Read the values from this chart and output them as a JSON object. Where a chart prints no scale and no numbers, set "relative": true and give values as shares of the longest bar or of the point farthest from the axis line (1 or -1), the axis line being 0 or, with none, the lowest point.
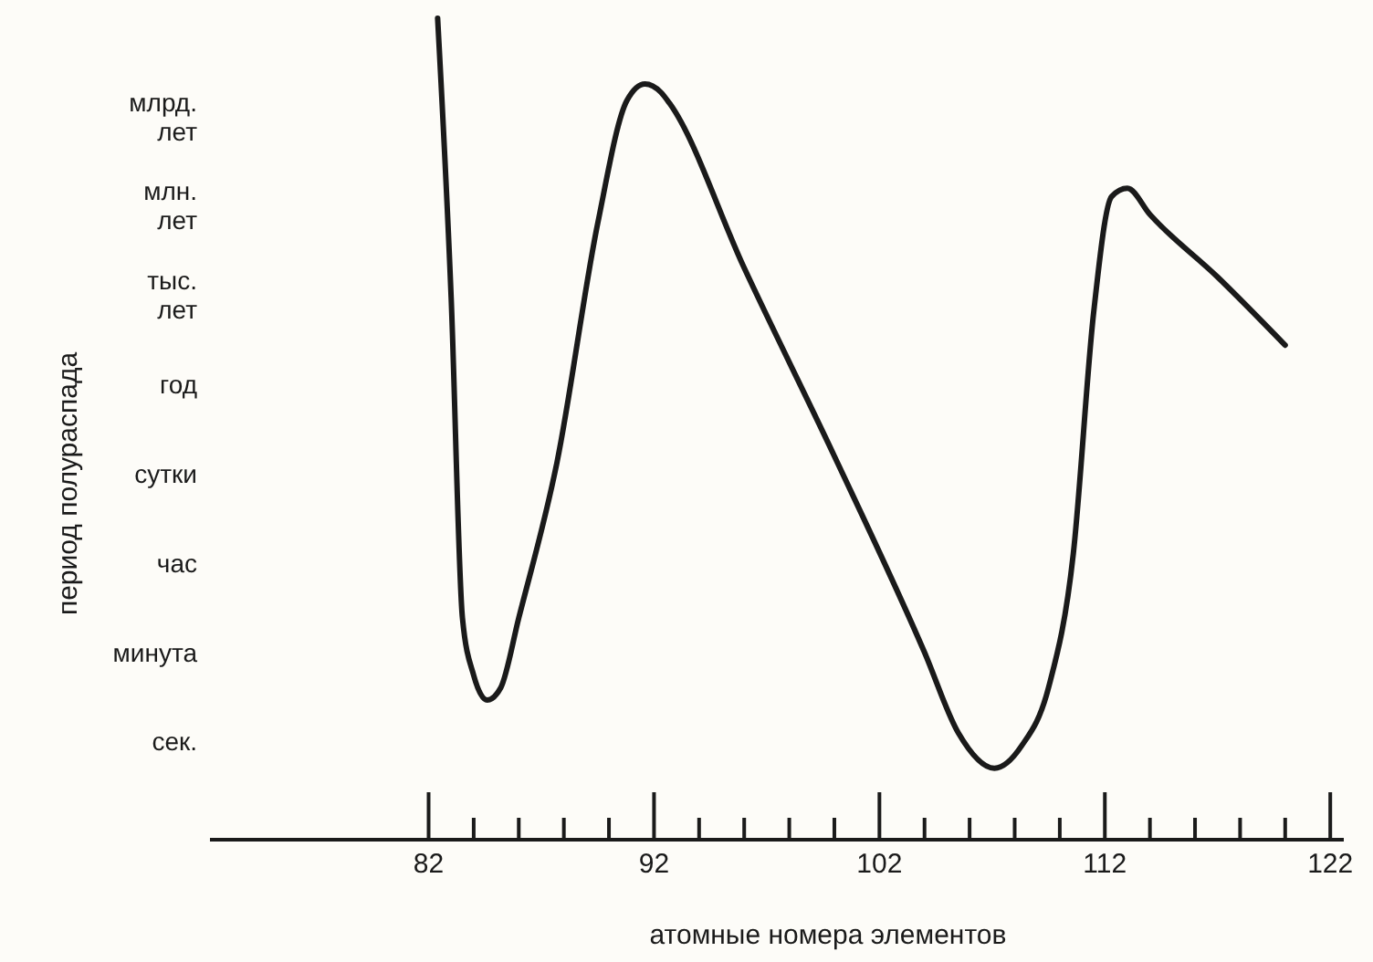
{
  "chart_data": {
    "type": "line",
    "relative": true,
    "xlabel": "атомные номера элементов",
    "ylabel": "период полураспада",
    "xlim": [
      72.3,
      122.6
    ],
    "xticks": [
      82,
      {
        "value": 84,
        "label": null
      },
      {
        "value": 86,
        "label": null
      },
      {
        "value": 88,
        "label": null
      },
      {
        "value": 90,
        "label": null
      },
      92,
      {
        "value": 94,
        "label": null
      },
      {
        "value": 96,
        "label": null
      },
      {
        "value": 98,
        "label": null
      },
      {
        "value": 100,
        "label": null
      },
      102,
      {
        "value": 104,
        "label": null
      },
      {
        "value": 106,
        "label": null
      },
      {
        "value": 108,
        "label": null
      },
      {
        "value": 110,
        "label": null
      },
      112,
      {
        "value": 114,
        "label": null
      },
      {
        "value": 116,
        "label": null
      },
      {
        "value": 118,
        "label": null
      },
      {
        "value": 120,
        "label": null
      },
      122
    ],
    "annotations": [
      "сек.",
      "минута",
      "час",
      "сутки",
      "год",
      "тыс.\nлет",
      "млн.\nлет",
      "млрд.\nлет"
    ],
    "marker": "none",
    "line_style": "solid",
    "series": [
      {
        "color": "#1a1a1a",
        "x": [
          82.4,
          83.0,
          83.5,
          84.0,
          84.6,
          85.2,
          86.0,
          87.7,
          89.5,
          90.8,
          91.6,
          92.3,
          92.7,
          96,
          100,
          104,
          105.5,
          107.1,
          108.3,
          109.5,
          110.6,
          111.5,
          112.3,
          113.0,
          114.0,
          117.0,
          120.0
        ],
        "values": [
          1.0,
          0.66,
          0.27,
          0.2,
          0.17,
          0.185,
          0.27,
          0.46,
          0.75,
          0.9,
          0.92,
          0.91,
          0.896,
          0.696,
          0.467,
          0.228,
          0.13,
          0.087,
          0.114,
          0.185,
          0.348,
          0.641,
          0.783,
          0.793,
          0.761,
          0.685,
          0.602
        ]
      }
    ]
  }
}
